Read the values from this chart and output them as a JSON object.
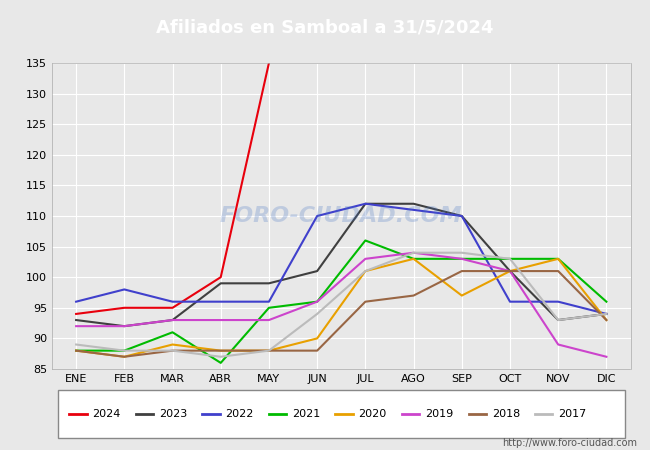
{
  "title": "Afiliados en Samboal a 31/5/2024",
  "background_color": "#e8e8e8",
  "plot_background": "#e8e8e8",
  "title_bg_color": "#4472c4",
  "title_text_color": "#ffffff",
  "ylim": [
    85,
    135
  ],
  "yticks": [
    85,
    90,
    95,
    100,
    105,
    110,
    115,
    120,
    125,
    130,
    135
  ],
  "months": [
    "ENE",
    "FEB",
    "MAR",
    "ABR",
    "MAY",
    "JUN",
    "JUL",
    "AGO",
    "SEP",
    "OCT",
    "NOV",
    "DIC"
  ],
  "watermark": "FORO-CIUDAD.COM",
  "url": "http://www.foro-ciudad.com",
  "series": [
    {
      "year": "2024",
      "color": "#e8000d",
      "data": [
        94,
        95,
        95,
        100,
        135,
        null,
        null,
        null,
        null,
        null,
        null,
        null
      ]
    },
    {
      "year": "2023",
      "color": "#404040",
      "data": [
        93,
        92,
        93,
        99,
        99,
        101,
        112,
        112,
        110,
        101,
        93,
        94
      ]
    },
    {
      "year": "2022",
      "color": "#4040cc",
      "data": [
        96,
        98,
        96,
        96,
        96,
        110,
        112,
        111,
        110,
        96,
        96,
        94
      ]
    },
    {
      "year": "2021",
      "color": "#00bb00",
      "data": [
        88,
        88,
        91,
        86,
        95,
        96,
        106,
        103,
        103,
        103,
        103,
        96
      ]
    },
    {
      "year": "2020",
      "color": "#e8a000",
      "data": [
        88,
        87,
        89,
        88,
        88,
        90,
        101,
        103,
        97,
        101,
        103,
        93
      ]
    },
    {
      "year": "2019",
      "color": "#cc44cc",
      "data": [
        92,
        92,
        93,
        93,
        93,
        96,
        103,
        104,
        103,
        101,
        89,
        87
      ]
    },
    {
      "year": "2018",
      "color": "#996644",
      "data": [
        88,
        87,
        88,
        88,
        88,
        88,
        96,
        97,
        101,
        101,
        101,
        93
      ]
    },
    {
      "year": "2017",
      "color": "#bbbbbb",
      "data": [
        89,
        88,
        88,
        87,
        88,
        94,
        101,
        104,
        104,
        103,
        93,
        94
      ]
    }
  ]
}
